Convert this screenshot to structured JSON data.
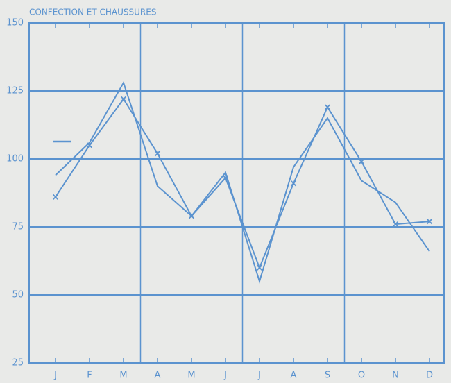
{
  "chart_data": {
    "type": "line",
    "title": "CONFECTION ET CHAUSSURES",
    "categories": [
      "J",
      "F",
      "M",
      "A",
      "M",
      "J",
      "J",
      "A",
      "S",
      "O",
      "N",
      "D"
    ],
    "series": [
      {
        "color": "#5b93cf",
        "marker": "x",
        "values": [
          86,
          105,
          122,
          102,
          79,
          93,
          60,
          91,
          119,
          99,
          76,
          77
        ]
      },
      {
        "color": "#5b93cf",
        "values": [
          94,
          106,
          128,
          90,
          79,
          95,
          55,
          97,
          115,
          92,
          84,
          66
        ]
      }
    ],
    "ylim": [
      25,
      150
    ],
    "yticks": [
      25,
      50,
      75,
      100,
      125,
      150
    ],
    "grid": true
  }
}
